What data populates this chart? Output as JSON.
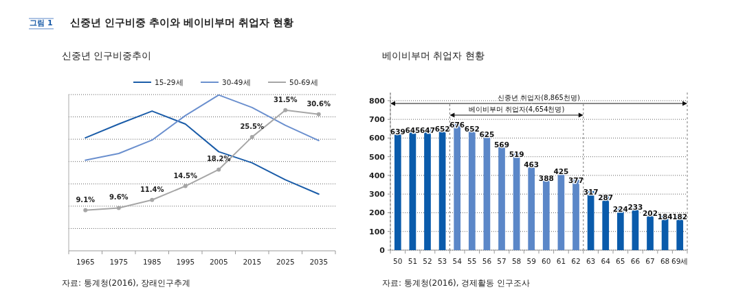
{
  "chart_data": [
    {
      "type": "other",
      "title": "신중년 인구비중 추이와 베이비부머 취업자 현황",
      "annotations": [
        "그림 1"
      ]
    },
    {
      "type": "line",
      "title": "신중년 인구비중추이",
      "categories": [
        "1965",
        "1975",
        "1985",
        "1995",
        "2005",
        "2015",
        "2025",
        "2035"
      ],
      "series": [
        {
          "name": "15-29세",
          "color": "#1a5ca8",
          "marker": "none",
          "values": [
            25.3,
            28.4,
            31.3,
            28.4,
            22.2,
            19.7,
            15.9,
            12.7
          ]
        },
        {
          "name": "30-49세",
          "color": "#6a8fce",
          "marker": "none",
          "values": [
            20.3,
            21.8,
            24.8,
            30.3,
            34.9,
            32.1,
            28.1,
            24.7
          ]
        },
        {
          "name": "50-69세",
          "color": "#a6a6a6",
          "marker": "circle",
          "values": [
            9.1,
            9.6,
            11.4,
            14.5,
            18.2,
            25.5,
            31.5,
            30.6
          ],
          "value_labels": [
            "9.1%",
            "9.6%",
            "11.4%",
            "14.5%",
            "18.2%",
            "25.5%",
            "31.5%",
            "30.6%"
          ]
        }
      ],
      "ylim": [
        0,
        35
      ],
      "yticks": [
        {
          "value": 5,
          "label": null
        },
        {
          "value": 10,
          "label": null
        },
        {
          "value": 15,
          "label": null
        },
        {
          "value": 20,
          "label": null
        },
        {
          "value": 25,
          "label": null
        },
        {
          "value": 30,
          "label": null
        },
        {
          "value": 35,
          "label": null
        }
      ],
      "grid": "y",
      "legend": "top right",
      "line_style": "solid",
      "annotations": [
        "자료: 통계청(2016), 장래인구추계"
      ]
    },
    {
      "type": "bar",
      "title": "베이비부머 취업자 현황",
      "categories": [
        "50",
        "51",
        "52",
        "53",
        "54",
        "55",
        "56",
        "57",
        "58",
        "59",
        "60",
        "61",
        "62",
        "63",
        "64",
        "65",
        "66",
        "67",
        "68",
        "69세"
      ],
      "values": [
        639,
        645,
        647,
        652,
        676,
        652,
        625,
        569,
        519,
        463,
        388,
        425,
        377,
        317,
        287,
        224,
        233,
        202,
        184,
        182
      ],
      "colors": [
        "#0a5bab",
        "#0a5bab",
        "#0a5bab",
        "#0a5bab",
        "#5b87c8",
        "#5b87c8",
        "#5b87c8",
        "#5b87c8",
        "#5b87c8",
        "#5b87c8",
        "#5b87c8",
        "#5b87c8",
        "#5b87c8",
        "#0a5bab",
        "#0a5bab",
        "#0a5bab",
        "#0a5bab",
        "#0a5bab",
        "#0a5bab",
        "#0a5bab"
      ],
      "ylim": [
        0,
        840
      ],
      "yticks": [
        0,
        100,
        200,
        300,
        400,
        500,
        600,
        700,
        800
      ],
      "grid": "y",
      "data_labels": true,
      "annotations": [
        "신중년 취업자(8,865천명)",
        "베이비부머 취업자(4,654천명)",
        "자료: 통계청(2016), 경제활동 인구조사"
      ]
    }
  ]
}
